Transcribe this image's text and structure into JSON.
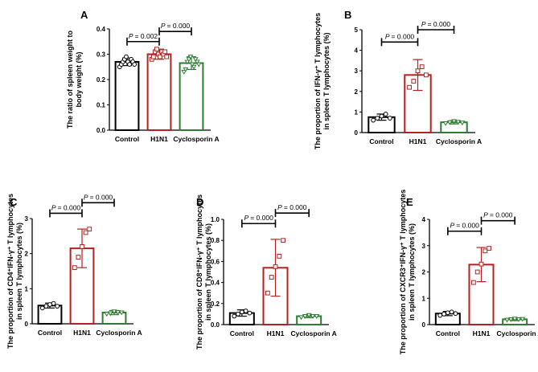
{
  "figure": {
    "description_free": true
  },
  "chart_data": [
    {
      "type": "bar",
      "panel": "A",
      "categories": [
        "Control",
        "H1N1",
        "Cyclosporin A"
      ],
      "colors": [
        "#000000",
        "#b22222",
        "#2e7d32"
      ],
      "values": [
        0.27,
        0.3,
        0.265
      ],
      "errors": [
        0.015,
        0.02,
        0.025
      ],
      "points": [
        [
          0.25,
          0.26,
          0.27,
          0.28,
          0.29,
          0.27,
          0.26,
          0.28,
          0.27,
          0.26
        ],
        [
          0.28,
          0.29,
          0.31,
          0.32,
          0.3,
          0.29,
          0.31,
          0.3,
          0.31,
          0.29
        ],
        [
          0.23,
          0.24,
          0.27,
          0.28,
          0.29,
          0.26,
          0.25,
          0.28,
          0.27,
          0.26
        ]
      ],
      "ylabel_lines": [
        "The ratio of spleen weight to",
        "body weight (%)"
      ],
      "yticks": [
        "0.0",
        "0.1",
        "0.2",
        "0.3",
        "0.4"
      ],
      "ylim": [
        0,
        0.4
      ],
      "comparisons": [
        {
          "label": "= 0.002",
          "from": 0,
          "to": 1,
          "y": 0.35
        },
        {
          "label": "= 0.000",
          "from": 1,
          "to": 2,
          "y": 0.39
        }
      ]
    },
    {
      "type": "bar",
      "panel": "B",
      "categories": [
        "Control",
        "H1N1",
        "Cyclosporin A"
      ],
      "colors": [
        "#000000",
        "#b22222",
        "#2e7d32"
      ],
      "values": [
        0.75,
        2.8,
        0.5
      ],
      "errors": [
        0.15,
        0.75,
        0.08
      ],
      "points": [
        [
          0.6,
          0.7,
          0.8,
          0.9,
          0.7
        ],
        [
          2.2,
          2.5,
          3.0,
          3.2,
          2.8
        ],
        [
          0.45,
          0.5,
          0.55,
          0.52,
          0.48
        ]
      ],
      "ylabel_lines": [
        "The proportion of IFN-γ⁺ T lymphocytes",
        "in spleen T lymphocytes (%)"
      ],
      "yticks": [
        "0",
        "1",
        "2",
        "3",
        "4",
        "5"
      ],
      "ylim": [
        0,
        5
      ],
      "comparisons": [
        {
          "label": "= 0.000",
          "from": 0,
          "to": 1,
          "y": 4.4
        },
        {
          "label": "= 0.000",
          "from": 1,
          "to": 2,
          "y": 5.0
        }
      ]
    },
    {
      "type": "bar",
      "panel": "C",
      "categories": [
        "Control",
        "H1N1",
        "Cyclosporin A"
      ],
      "colors": [
        "#000000",
        "#b22222",
        "#2e7d32"
      ],
      "values": [
        0.52,
        2.15,
        0.32
      ],
      "errors": [
        0.07,
        0.55,
        0.06
      ],
      "points": [
        [
          0.45,
          0.5,
          0.55,
          0.58,
          0.5
        ],
        [
          1.6,
          1.9,
          2.2,
          2.6,
          2.7
        ],
        [
          0.28,
          0.3,
          0.35,
          0.33,
          0.32
        ]
      ],
      "ylabel_lines": [
        "The proportion of CD4⁺IFN-γ⁺ T lymphocytes",
        "in spleen T lymphocytes (%)"
      ],
      "yticks": [
        "0",
        "1",
        "2",
        "3"
      ],
      "ylim": [
        0,
        3
      ],
      "comparisons": [
        {
          "label": "= 0.000",
          "from": 0,
          "to": 1,
          "y": 3.15
        },
        {
          "label": "= 0.000",
          "from": 1,
          "to": 2,
          "y": 3.45
        }
      ]
    },
    {
      "type": "bar",
      "panel": "D",
      "categories": [
        "Control",
        "H1N1",
        "Cyclosporin A"
      ],
      "colors": [
        "#000000",
        "#b22222",
        "#2e7d32"
      ],
      "values": [
        0.11,
        0.54,
        0.08
      ],
      "errors": [
        0.03,
        0.27,
        0.015
      ],
      "points": [
        [
          0.08,
          0.1,
          0.12,
          0.13,
          0.11
        ],
        [
          0.3,
          0.45,
          0.55,
          0.65,
          0.8
        ],
        [
          0.07,
          0.08,
          0.09,
          0.08,
          0.08
        ]
      ],
      "ylabel_lines": [
        "The proportion of CD8⁺IFN-γ⁺ T lymphocytes",
        "in spleen T lymphocytes (%)"
      ],
      "yticks": [
        "0.0",
        "0.2",
        "0.4",
        "0.6",
        "0.8",
        "1.0"
      ],
      "ylim": [
        0,
        1.0
      ],
      "comparisons": [
        {
          "label": "= 0.000",
          "from": 0,
          "to": 1,
          "y": 0.96
        },
        {
          "label": "= 0.000",
          "from": 1,
          "to": 2,
          "y": 1.06
        }
      ]
    },
    {
      "type": "bar",
      "panel": "E",
      "categories": [
        "Control",
        "H1N1",
        "Cyclosporin A"
      ],
      "colors": [
        "#000000",
        "#b22222",
        "#2e7d32"
      ],
      "values": [
        0.42,
        2.28,
        0.2
      ],
      "errors": [
        0.08,
        0.65,
        0.05
      ],
      "points": [
        [
          0.35,
          0.4,
          0.45,
          0.48,
          0.42
        ],
        [
          1.6,
          2.0,
          2.3,
          2.8,
          2.9
        ],
        [
          0.18,
          0.2,
          0.22,
          0.2,
          0.21
        ]
      ],
      "ylabel_lines": [
        "The proportion of CXCR3⁺IFN-γ⁺ T lymphocytes",
        "in spleen T lymphocytes (%)"
      ],
      "yticks": [
        "0",
        "1",
        "2",
        "3",
        "4"
      ],
      "ylim": [
        0,
        4
      ],
      "comparisons": [
        {
          "label": "= 0.000",
          "from": 0,
          "to": 1,
          "y": 3.55
        },
        {
          "label": "= 0.000",
          "from": 1,
          "to": 2,
          "y": 3.95
        }
      ]
    }
  ]
}
